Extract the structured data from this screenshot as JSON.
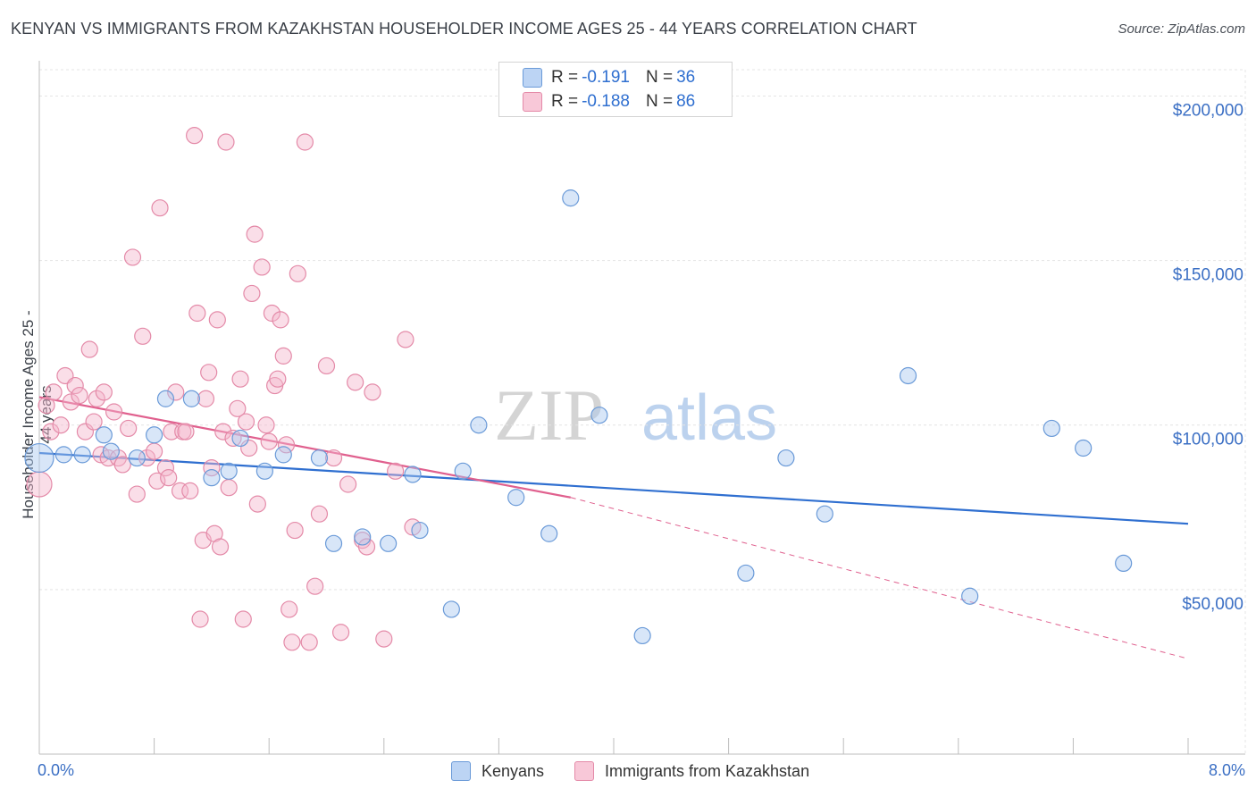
{
  "title": "KENYAN VS IMMIGRANTS FROM KAZAKHSTAN HOUSEHOLDER INCOME AGES 25 - 44 YEARS CORRELATION CHART",
  "source": "Source: ZipAtlas.com",
  "watermark": {
    "zip": "ZIP",
    "atlas": "atlas"
  },
  "legend": {
    "kenyans": {
      "r_label": "R =",
      "r_value": "-0.191",
      "n_label": "N =",
      "n_value": "36"
    },
    "kazakhstan": {
      "r_label": "R =",
      "r_value": "-0.188",
      "n_label": "N =",
      "n_value": "86"
    }
  },
  "colors": {
    "blue_fill": "#a8c8f0",
    "blue_stroke": "#6a9ad8",
    "blue_line": "#2f6fd0",
    "pink_fill": "#f5b6cb",
    "pink_stroke": "#e48aa8",
    "pink_line": "#e0608e",
    "grid": "#e4e4e4",
    "axis_text": "#3b6fc4"
  },
  "chart_data": {
    "type": "scatter",
    "title": "KENYAN VS IMMIGRANTS FROM KAZAKHSTAN HOUSEHOLDER INCOME AGES 25 - 44 YEARS CORRELATION CHART",
    "xlabel": "",
    "ylabel": "Householder Income Ages 25 - 44 years",
    "xlim": [
      0,
      8.0
    ],
    "ylim": [
      0,
      208000
    ],
    "x_tick_labels": [
      "0.0%",
      "8.0%"
    ],
    "y_ticks": [
      {
        "value": 50000,
        "label": "$50,000"
      },
      {
        "value": 100000,
        "label": "$100,000"
      },
      {
        "value": 150000,
        "label": "$150,000"
      },
      {
        "value": 200000,
        "label": "$200,000"
      }
    ],
    "series": [
      {
        "name": "Kenyans",
        "points": [
          [
            0.0,
            90000
          ],
          [
            0.17,
            91000
          ],
          [
            0.45,
            97000
          ],
          [
            0.5,
            92000
          ],
          [
            0.68,
            90000
          ],
          [
            0.8,
            97000
          ],
          [
            0.88,
            108000
          ],
          [
            1.06,
            108000
          ],
          [
            1.2,
            84000
          ],
          [
            1.32,
            86000
          ],
          [
            1.4,
            96000
          ],
          [
            1.57,
            86000
          ],
          [
            1.7,
            91000
          ],
          [
            1.95,
            90000
          ],
          [
            2.05,
            64000
          ],
          [
            2.25,
            66000
          ],
          [
            2.43,
            64000
          ],
          [
            2.6,
            85000
          ],
          [
            2.65,
            68000
          ],
          [
            2.87,
            44000
          ],
          [
            2.95,
            86000
          ],
          [
            3.06,
            100000
          ],
          [
            3.32,
            78000
          ],
          [
            3.55,
            67000
          ],
          [
            3.7,
            169000
          ],
          [
            3.9,
            103000
          ],
          [
            4.2,
            36000
          ],
          [
            4.92,
            55000
          ],
          [
            5.2,
            90000
          ],
          [
            5.47,
            73000
          ],
          [
            6.05,
            115000
          ],
          [
            6.48,
            48000
          ],
          [
            7.05,
            99000
          ],
          [
            7.27,
            93000
          ],
          [
            7.55,
            58000
          ],
          [
            0.3,
            91000
          ]
        ],
        "trend": {
          "x": [
            0.0,
            8.0
          ],
          "y": [
            91500,
            70000
          ]
        }
      },
      {
        "name": "Immigrants from Kazakhstan",
        "points": [
          [
            0.0,
            82000
          ],
          [
            0.05,
            106000
          ],
          [
            0.08,
            98000
          ],
          [
            0.1,
            110000
          ],
          [
            0.15,
            100000
          ],
          [
            0.18,
            115000
          ],
          [
            0.22,
            107000
          ],
          [
            0.25,
            112000
          ],
          [
            0.28,
            109000
          ],
          [
            0.32,
            98000
          ],
          [
            0.35,
            123000
          ],
          [
            0.38,
            101000
          ],
          [
            0.4,
            108000
          ],
          [
            0.43,
            91000
          ],
          [
            0.45,
            110000
          ],
          [
            0.48,
            90000
          ],
          [
            0.52,
            104000
          ],
          [
            0.55,
            90000
          ],
          [
            0.58,
            88000
          ],
          [
            0.62,
            99000
          ],
          [
            0.65,
            151000
          ],
          [
            0.68,
            79000
          ],
          [
            0.72,
            127000
          ],
          [
            0.75,
            90000
          ],
          [
            0.8,
            92000
          ],
          [
            0.82,
            83000
          ],
          [
            0.84,
            166000
          ],
          [
            0.88,
            87000
          ],
          [
            0.9,
            84000
          ],
          [
            0.92,
            98000
          ],
          [
            0.95,
            110000
          ],
          [
            0.98,
            80000
          ],
          [
            1.0,
            98000
          ],
          [
            1.02,
            98000
          ],
          [
            1.05,
            80000
          ],
          [
            1.08,
            188000
          ],
          [
            1.1,
            134000
          ],
          [
            1.12,
            41000
          ],
          [
            1.14,
            65000
          ],
          [
            1.16,
            108000
          ],
          [
            1.18,
            116000
          ],
          [
            1.2,
            87000
          ],
          [
            1.22,
            67000
          ],
          [
            1.24,
            132000
          ],
          [
            1.26,
            63000
          ],
          [
            1.28,
            98000
          ],
          [
            1.3,
            186000
          ],
          [
            1.32,
            81000
          ],
          [
            1.35,
            96000
          ],
          [
            1.38,
            105000
          ],
          [
            1.4,
            114000
          ],
          [
            1.42,
            41000
          ],
          [
            1.44,
            101000
          ],
          [
            1.46,
            93000
          ],
          [
            1.48,
            140000
          ],
          [
            1.5,
            158000
          ],
          [
            1.52,
            76000
          ],
          [
            1.55,
            148000
          ],
          [
            1.58,
            100000
          ],
          [
            1.6,
            95000
          ],
          [
            1.62,
            134000
          ],
          [
            1.64,
            112000
          ],
          [
            1.66,
            114000
          ],
          [
            1.68,
            132000
          ],
          [
            1.7,
            121000
          ],
          [
            1.72,
            94000
          ],
          [
            1.74,
            44000
          ],
          [
            1.76,
            34000
          ],
          [
            1.78,
            68000
          ],
          [
            1.8,
            146000
          ],
          [
            1.85,
            186000
          ],
          [
            1.88,
            34000
          ],
          [
            1.92,
            51000
          ],
          [
            1.95,
            73000
          ],
          [
            2.0,
            118000
          ],
          [
            2.05,
            90000
          ],
          [
            2.1,
            37000
          ],
          [
            2.15,
            82000
          ],
          [
            2.2,
            113000
          ],
          [
            2.25,
            65000
          ],
          [
            2.28,
            63000
          ],
          [
            2.32,
            110000
          ],
          [
            2.4,
            35000
          ],
          [
            2.48,
            86000
          ],
          [
            2.55,
            126000
          ],
          [
            2.6,
            69000
          ]
        ],
        "trend": {
          "x": [
            0.0,
            3.7
          ],
          "y": [
            108500,
            78000
          ]
        },
        "trend_dashed": {
          "x": [
            3.7,
            8.0
          ],
          "y": [
            78000,
            29000
          ]
        }
      }
    ]
  },
  "bottom_legend": {
    "kenyans": "Kenyans",
    "kazakhstan": "Immigrants from Kazakhstan"
  }
}
